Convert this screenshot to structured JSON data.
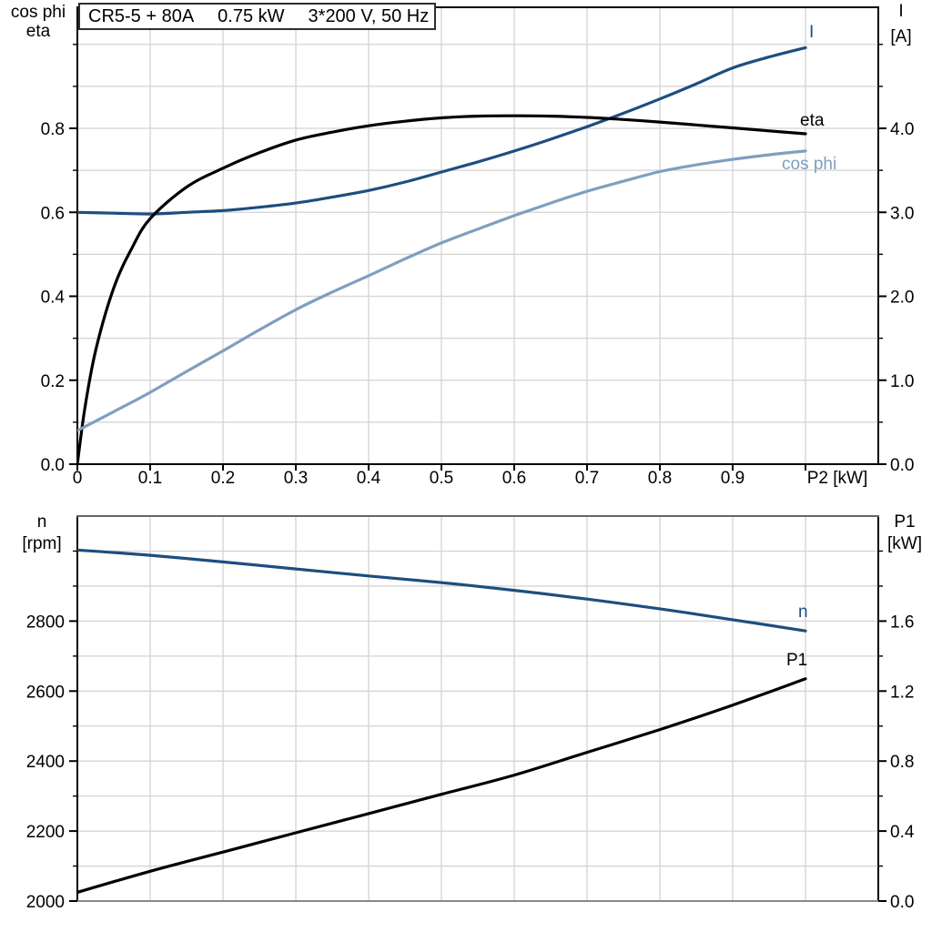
{
  "title_box": {
    "segments": [
      "CR5-5 + 80A",
      "0.75 kW",
      "3*200 V, 50 Hz"
    ]
  },
  "palette": {
    "black": "#000000",
    "dark_blue": "#1d4e7f",
    "light_blue": "#7f9fbf",
    "grid": "#d3d3d3",
    "frame_top_gray": "#666666",
    "frame_bottom_gray": "#888888"
  },
  "chart_data": [
    {
      "type": "line",
      "title": "CR5-5 + 80A   0.75 kW   3*200 V, 50 Hz",
      "x_axis": {
        "label": "P2 [kW]",
        "min": 0,
        "max": 1.1,
        "tick_step": 0.1,
        "tick_labels": [
          "0",
          "0.1",
          "0.2",
          "0.3",
          "0.4",
          "0.5",
          "0.6",
          "0.7",
          "0.8",
          "0.9"
        ],
        "grid": true
      },
      "left_axis": {
        "titles": [
          "cos phi",
          "eta"
        ],
        "min": 0,
        "max": 1.088,
        "major_step": 0.2,
        "minor_step": 0.1,
        "major_labels": [
          "0.0",
          "0.2",
          "0.4",
          "0.6",
          "0.8"
        ]
      },
      "right_axis": {
        "titles": [
          "I",
          "[A]"
        ],
        "min": 0,
        "max": 5.44,
        "major_step": 1.0,
        "minor_step": 0.5,
        "major_labels": [
          "0.0",
          "1.0",
          "2.0",
          "3.0",
          "4.0"
        ]
      },
      "legend_position": "curve-end-labels",
      "series": [
        {
          "name": "I",
          "axis": "right",
          "color_role": "dark_blue",
          "x": [
            0,
            0.05,
            0.1,
            0.15,
            0.2,
            0.25,
            0.3,
            0.35,
            0.4,
            0.45,
            0.5,
            0.55,
            0.6,
            0.65,
            0.7,
            0.75,
            0.8,
            0.85,
            0.9,
            0.95,
            1.0
          ],
          "y": [
            3.0,
            2.99,
            2.98,
            3.0,
            3.02,
            3.06,
            3.11,
            3.18,
            3.26,
            3.36,
            3.48,
            3.6,
            3.73,
            3.87,
            4.02,
            4.18,
            4.35,
            4.53,
            4.72,
            4.85,
            4.96
          ]
        },
        {
          "name": "eta",
          "axis": "left",
          "color_role": "black",
          "x": [
            0,
            0.01,
            0.025,
            0.05,
            0.075,
            0.1,
            0.15,
            0.2,
            0.25,
            0.3,
            0.35,
            0.4,
            0.45,
            0.5,
            0.55,
            0.6,
            0.65,
            0.7,
            0.75,
            0.8,
            0.85,
            0.9,
            0.95,
            1.0
          ],
          "y": [
            0,
            0.13,
            0.27,
            0.42,
            0.515,
            0.585,
            0.66,
            0.705,
            0.742,
            0.772,
            0.791,
            0.806,
            0.817,
            0.825,
            0.829,
            0.83,
            0.829,
            0.826,
            0.821,
            0.815,
            0.808,
            0.801,
            0.794,
            0.787
          ]
        },
        {
          "name": "cos phi",
          "axis": "left",
          "color_role": "light_blue",
          "x": [
            0,
            0.05,
            0.1,
            0.15,
            0.2,
            0.25,
            0.3,
            0.35,
            0.4,
            0.45,
            0.5,
            0.55,
            0.6,
            0.65,
            0.7,
            0.75,
            0.8,
            0.85,
            0.9,
            0.95,
            1.0
          ],
          "y": [
            0.08,
            0.125,
            0.171,
            0.221,
            0.27,
            0.32,
            0.368,
            0.41,
            0.449,
            0.489,
            0.527,
            0.56,
            0.592,
            0.622,
            0.65,
            0.674,
            0.697,
            0.713,
            0.726,
            0.737,
            0.746
          ]
        }
      ]
    },
    {
      "type": "line",
      "x_axis": {
        "label": "",
        "min": 0,
        "max": 1.1,
        "tick_step": 0.1,
        "tick_labels": [],
        "grid": true
      },
      "left_axis": {
        "titles": [
          "n",
          "[rpm]"
        ],
        "min": 2000,
        "max": 3100,
        "major_step": 200,
        "minor_step": 100,
        "major_labels": [
          "2000",
          "2200",
          "2400",
          "2600",
          "2800"
        ]
      },
      "right_axis": {
        "titles": [
          "P1",
          "[kW]"
        ],
        "min": 0,
        "max": 2.2,
        "major_step": 0.4,
        "minor_step": 0.2,
        "major_labels": [
          "0.0",
          "0.4",
          "0.8",
          "1.2",
          "1.6"
        ]
      },
      "legend_position": "curve-end-labels",
      "series": [
        {
          "name": "n",
          "axis": "left",
          "color_role": "dark_blue",
          "x": [
            0,
            0.1,
            0.2,
            0.3,
            0.4,
            0.5,
            0.6,
            0.7,
            0.8,
            0.9,
            1.0
          ],
          "y": [
            3003,
            2988,
            2969,
            2949,
            2929,
            2910,
            2888,
            2863,
            2835,
            2804,
            2772
          ]
        },
        {
          "name": "P1",
          "axis": "right",
          "color_role": "black",
          "x": [
            0,
            0.1,
            0.2,
            0.3,
            0.4,
            0.5,
            0.6,
            0.7,
            0.8,
            0.9,
            1.0
          ],
          "y": [
            0.05,
            0.17,
            0.28,
            0.39,
            0.5,
            0.61,
            0.72,
            0.85,
            0.98,
            1.12,
            1.27
          ]
        }
      ]
    }
  ]
}
